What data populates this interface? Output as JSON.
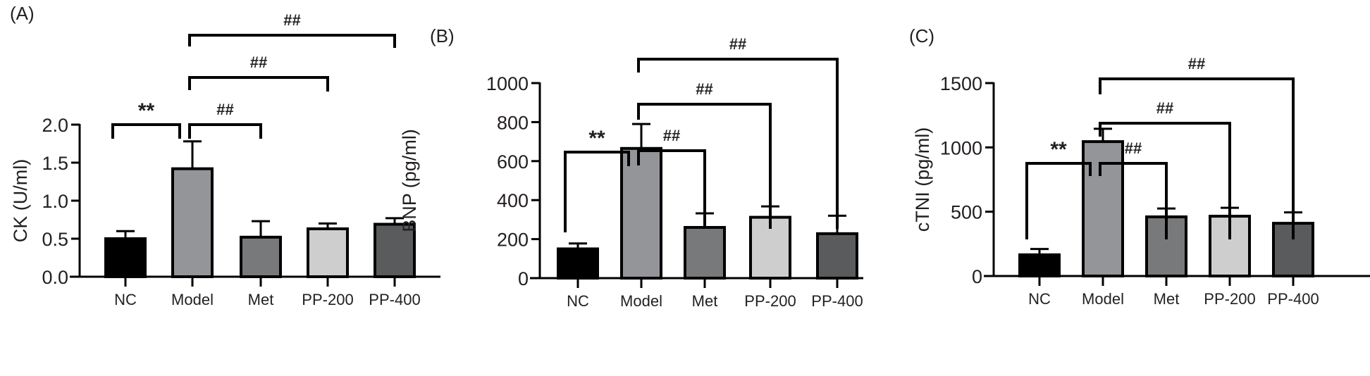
{
  "chart_data": [
    {
      "type": "bar",
      "panel_label": "(A)",
      "ylabel": "CK (U/ml)",
      "ylim": [
        0,
        2.0
      ],
      "yticks": [
        "0.0",
        "0.5",
        "1.0",
        "1.5",
        "2.0"
      ],
      "ytick_values": [
        0,
        0.5,
        1.0,
        1.5,
        2.0
      ],
      "categories": [
        "NC",
        "Model",
        "Met",
        "PP-200",
        "PP-400"
      ],
      "values": [
        0.5,
        1.42,
        0.52,
        0.63,
        0.69
      ],
      "error_upper": [
        0.6,
        1.78,
        0.73,
        0.7,
        0.77
      ],
      "colors": [
        "#000000",
        "#939598",
        "#77797b",
        "#cdcecd",
        "#595b5c"
      ],
      "comparisons": [
        {
          "from": "NC",
          "to": "Model",
          "label": "**"
        },
        {
          "from": "Model",
          "to": "Met",
          "label": "##"
        },
        {
          "from": "Model",
          "to": "PP-200",
          "label": "##"
        },
        {
          "from": "Model",
          "to": "PP-400",
          "label": "##"
        }
      ]
    },
    {
      "type": "bar",
      "panel_label": "(B)",
      "ylabel": "BNP (pg/ml)",
      "ylim": [
        0,
        1000
      ],
      "yticks": [
        "0",
        "200",
        "400",
        "600",
        "800",
        "1000"
      ],
      "ytick_values": [
        0,
        200,
        400,
        600,
        800,
        1000
      ],
      "categories": [
        "NC",
        "Model",
        "Met",
        "PP-200",
        "PP-400"
      ],
      "values": [
        150,
        665,
        260,
        312,
        228
      ],
      "error_upper": [
        178,
        790,
        332,
        368,
        320
      ],
      "colors": [
        "#000000",
        "#939598",
        "#77797b",
        "#cdcecd",
        "#595b5c"
      ],
      "comparisons": [
        {
          "from": "NC",
          "to": "Model",
          "label": "**"
        },
        {
          "from": "Model",
          "to": "Met",
          "label": "##"
        },
        {
          "from": "Model",
          "to": "PP-200",
          "label": "##"
        },
        {
          "from": "Model",
          "to": "PP-400",
          "label": "##"
        }
      ]
    },
    {
      "type": "bar",
      "panel_label": "(C)",
      "ylabel": "cTNI (pg/ml)",
      "ylim": [
        0,
        1500
      ],
      "yticks": [
        "0",
        "500",
        "1000",
        "1500"
      ],
      "ytick_values": [
        0,
        500,
        1000,
        1500
      ],
      "categories": [
        "NC",
        "Model",
        "Met",
        "PP-200",
        "PP-400"
      ],
      "values": [
        165,
        1045,
        460,
        465,
        410
      ],
      "error_upper": [
        210,
        1145,
        525,
        530,
        495
      ],
      "colors": [
        "#000000",
        "#939598",
        "#77797b",
        "#cdcecd",
        "#595b5c"
      ],
      "comparisons": [
        {
          "from": "NC",
          "to": "Model",
          "label": "**"
        },
        {
          "from": "Model",
          "to": "Met",
          "label": "##"
        },
        {
          "from": "Model",
          "to": "PP-200",
          "label": "##"
        },
        {
          "from": "Model",
          "to": "PP-400",
          "label": "##"
        }
      ]
    }
  ]
}
